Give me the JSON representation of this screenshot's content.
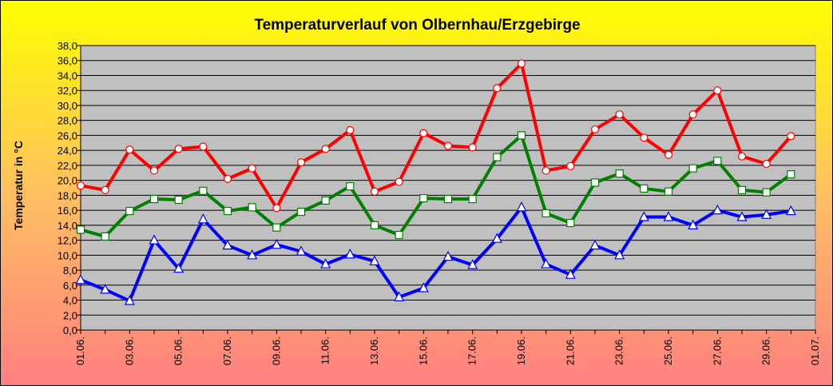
{
  "chart_data": {
    "type": "line",
    "title": "Temperaturverlauf von Olbernhau/Erzgebirge",
    "xlabel": "",
    "ylabel": "Temperatur in  °C",
    "ylim": [
      0,
      38
    ],
    "y_ticks": [
      "0,0",
      "2,0",
      "4,0",
      "6,0",
      "8,0",
      "10,0",
      "12,0",
      "14,0",
      "16,0",
      "18,0",
      "20,0",
      "22,0",
      "24,0",
      "26,0",
      "28,0",
      "30,0",
      "32,0",
      "34,0",
      "36,0",
      "38,0"
    ],
    "x_tick_labels": [
      "01.06.",
      "03.06.",
      "05.06.",
      "07.06.",
      "09.06.",
      "11.06.",
      "13.06.",
      "15.06.",
      "17.06.",
      "19.06.",
      "21.06.",
      "23.06.",
      "25.06.",
      "27.06.",
      "29.06.",
      "01.07."
    ],
    "x": [
      "01.06.",
      "02.06.",
      "03.06.",
      "04.06.",
      "05.06.",
      "06.06.",
      "07.06.",
      "08.06.",
      "09.06.",
      "10.06.",
      "11.06.",
      "12.06.",
      "13.06.",
      "14.06.",
      "15.06.",
      "16.06.",
      "17.06.",
      "18.06.",
      "19.06.",
      "20.06.",
      "21.06.",
      "22.06.",
      "23.06.",
      "24.06.",
      "25.06.",
      "26.06.",
      "27.06.",
      "28.06.",
      "29.06.",
      "30.06."
    ],
    "grid": true,
    "plot_background": "#c0c0c0",
    "series": [
      {
        "color": "#ff0000",
        "marker": "circle",
        "values": [
          19.3,
          18.7,
          24.1,
          21.3,
          24.2,
          24.5,
          20.2,
          21.6,
          16.3,
          22.4,
          24.2,
          26.7,
          18.5,
          19.8,
          26.3,
          24.6,
          24.4,
          32.3,
          35.6,
          21.3,
          21.9,
          26.8,
          28.8,
          25.7,
          23.4,
          28.8,
          32.0,
          23.2,
          22.2,
          25.9
        ]
      },
      {
        "color": "#008000",
        "marker": "square",
        "values": [
          13.4,
          12.5,
          15.9,
          17.5,
          17.4,
          18.6,
          15.9,
          16.4,
          13.7,
          15.8,
          17.3,
          19.2,
          14.0,
          12.7,
          17.6,
          17.5,
          17.5,
          23.1,
          26.0,
          15.6,
          14.3,
          19.7,
          20.9,
          18.9,
          18.5,
          21.6,
          22.6,
          18.7,
          18.4,
          20.8
        ]
      },
      {
        "color": "#0000ff",
        "marker": "triangle",
        "values": [
          6.7,
          5.4,
          3.9,
          12.0,
          8.2,
          14.8,
          11.3,
          10.0,
          11.4,
          10.5,
          8.8,
          10.1,
          9.2,
          4.4,
          5.6,
          9.8,
          8.7,
          12.2,
          16.4,
          8.8,
          7.4,
          11.3,
          10.0,
          15.1,
          15.1,
          14.0,
          16.0,
          15.1,
          15.4,
          15.9
        ]
      }
    ]
  }
}
